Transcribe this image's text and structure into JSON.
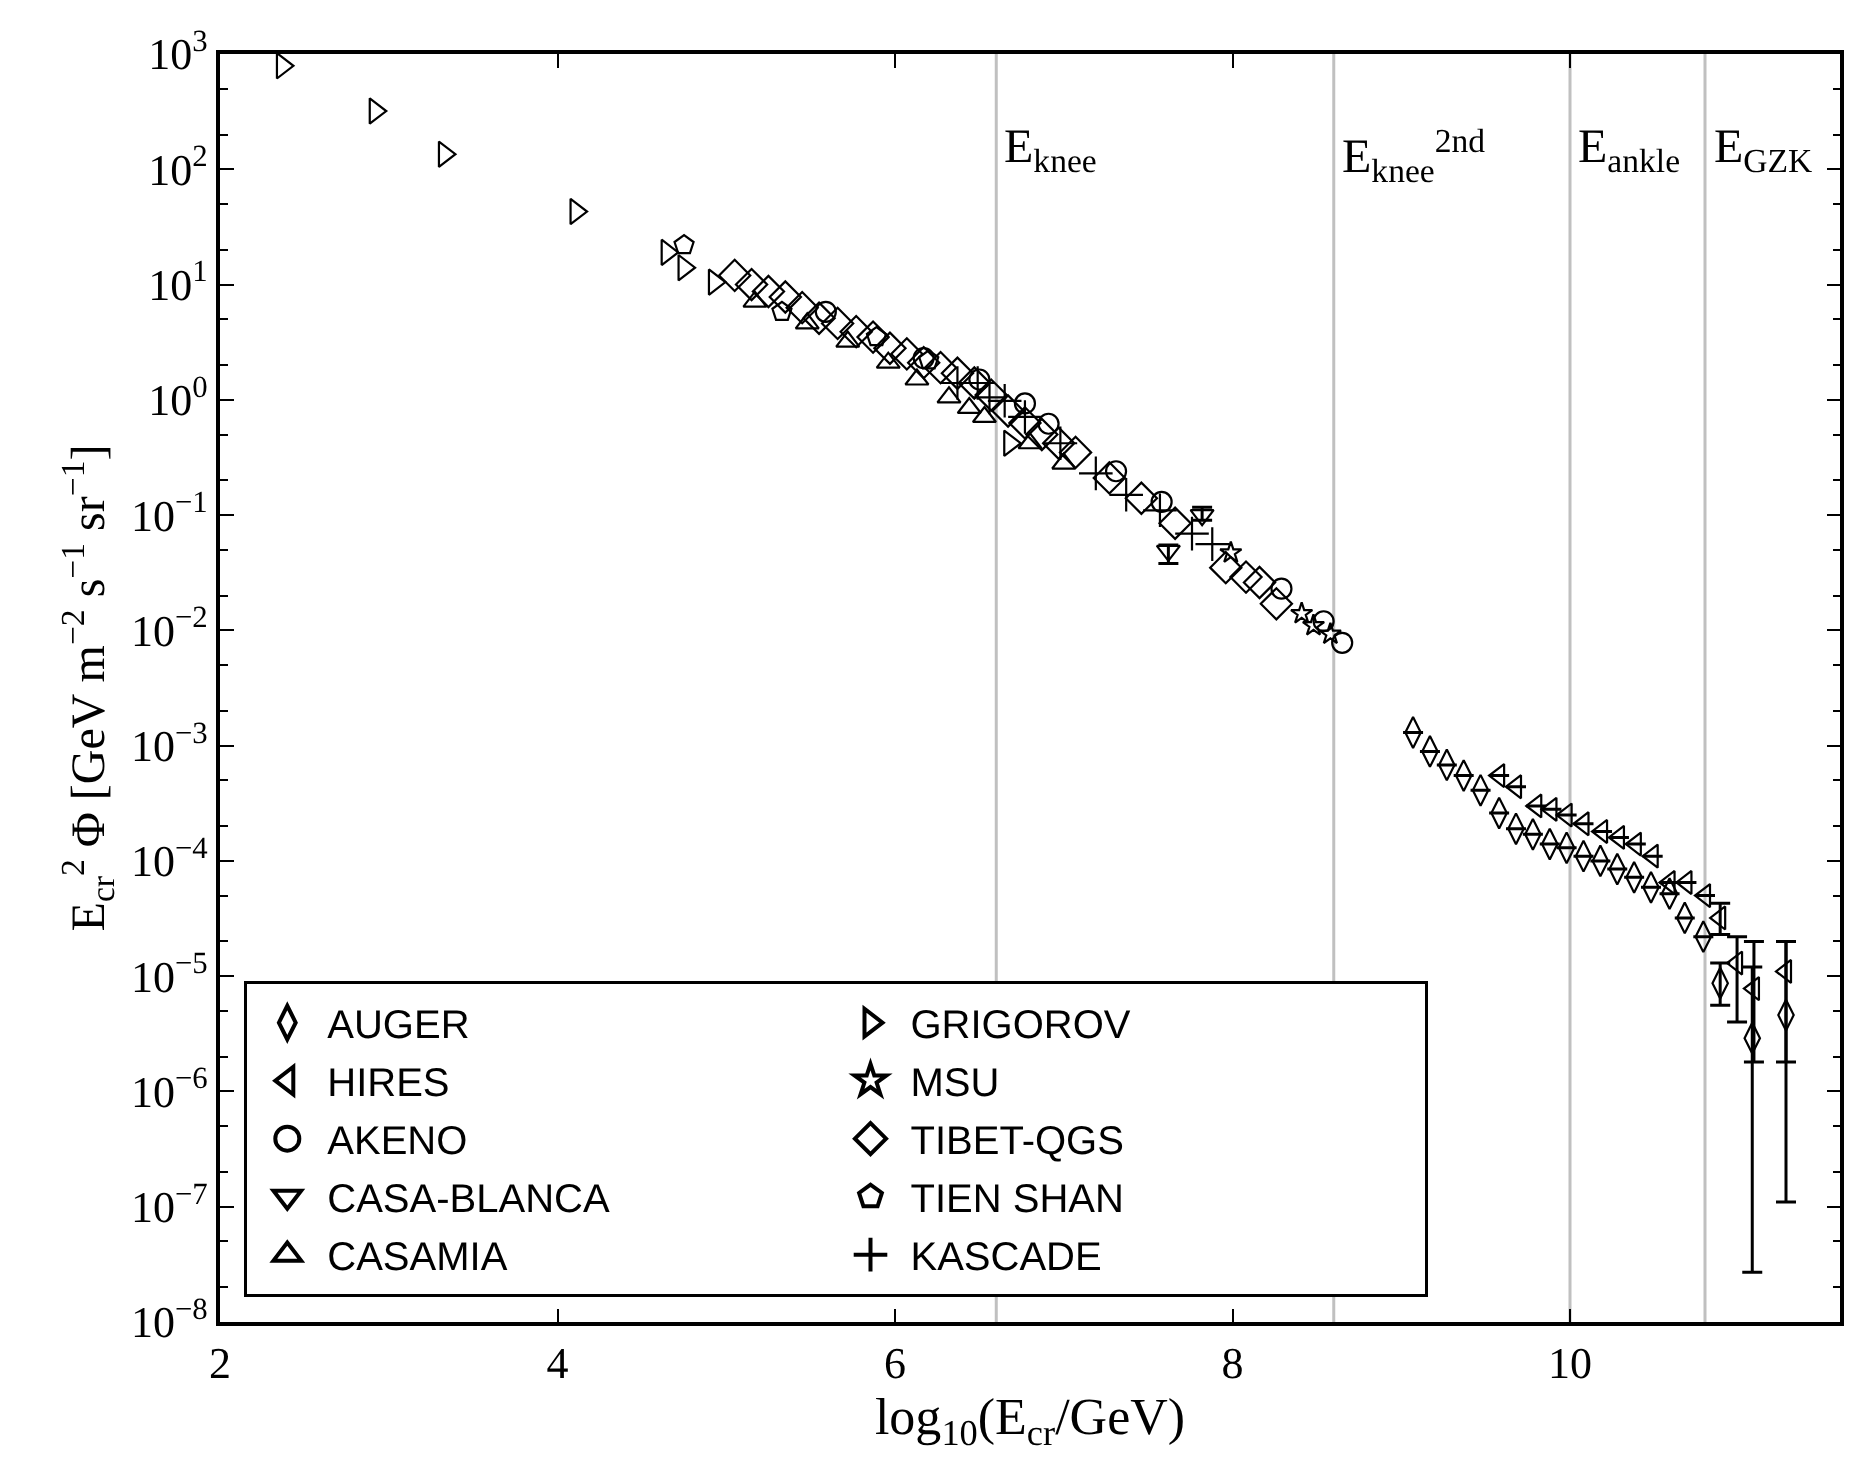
{
  "chart_data": {
    "type": "scatter",
    "xlabel": "log$_{10}$(E$_{cr}$/GeV)",
    "ylabel": "E$_{cr}$$^{2}$ Φ [GeV m$^{−2}$ s$^{−1}$ sr$^{−1}$]",
    "log": "y",
    "grid": false,
    "legend": "bottom left",
    "xlim": [
      2,
      11.6
    ],
    "xticks": [
      2,
      4,
      6,
      8,
      10
    ],
    "ylim": [
      1e-08,
      1000
    ],
    "yticks": [
      {
        "value": 1e-08,
        "label": "10$^{−8}$"
      },
      {
        "value": 1e-07,
        "label": "10$^{−7}$"
      },
      {
        "value": 1e-06,
        "label": "10$^{−6}$"
      },
      {
        "value": 1e-05,
        "label": "10$^{−5}$"
      },
      {
        "value": 0.0001,
        "label": "10$^{−4}$"
      },
      {
        "value": 0.001,
        "label": "10$^{−3}$"
      },
      {
        "value": 0.01,
        "label": "10$^{−2}$"
      },
      {
        "value": 0.1,
        "label": "10$^{−1}$"
      },
      {
        "value": 1,
        "label": "10$^{0}$"
      },
      {
        "value": 10,
        "label": "10$^{1}$"
      },
      {
        "value": 100,
        "label": "10$^{2}$"
      },
      {
        "value": 1000,
        "label": "10$^{3}$"
      }
    ],
    "ref_lines": [
      {
        "axis": "x",
        "value": 6.6,
        "label": "E$_{knee}$",
        "color": "#c0c0c0"
      },
      {
        "axis": "x",
        "value": 8.6,
        "label": "E$_{knee}$$^{2nd}$",
        "color": "#c0c0c0"
      },
      {
        "axis": "x",
        "value": 10.0,
        "label": "E$_{ankle}$",
        "color": "#c0c0c0"
      },
      {
        "axis": "x",
        "value": 10.8,
        "label": "E$_{GZK}$",
        "color": "#c0c0c0"
      }
    ],
    "series": [
      {
        "name": "AUGER",
        "color": "#000000",
        "marker": "diamond-tall",
        "x": [
          9.07,
          9.17,
          9.27,
          9.37,
          9.47,
          9.58,
          9.68,
          9.78,
          9.88,
          9.98,
          10.08,
          10.18,
          10.28,
          10.38,
          10.48,
          10.59,
          10.68,
          10.79,
          10.89,
          11.08,
          11.28
        ],
        "values": [
          0.0013,
          0.00089,
          0.00068,
          0.00055,
          0.00041,
          0.00026,
          0.00019,
          0.00017,
          0.00014,
          0.00013,
          0.00011,
          0.0001,
          8.5e-05,
          7.2e-05,
          5.9e-05,
          5.2e-05,
          3.2e-05,
          2.2e-05,
          8.7e-06,
          2.9e-06,
          4.6e-06
        ],
        "errors": [
          null,
          null,
          null,
          null,
          null,
          null,
          null,
          null,
          null,
          null,
          null,
          null,
          null,
          null,
          null,
          null,
          null,
          null,
          [
            5.6e-06,
            1.3e-05
          ],
          [
            2.7e-08,
            1.2e-05
          ],
          [
            1.1e-07,
            2e-05
          ]
        ]
      },
      {
        "name": "HIRES",
        "color": "#000000",
        "marker": "triangle-left",
        "x": [
          9.58,
          9.68,
          9.8,
          9.89,
          9.98,
          10.08,
          10.19,
          10.29,
          10.39,
          10.49,
          10.59,
          10.69,
          10.8,
          10.89,
          10.99,
          11.09,
          11.28
        ],
        "values": [
          0.00055,
          0.00044,
          0.0003,
          0.00028,
          0.00025,
          0.00021,
          0.00018,
          0.00016,
          0.00014,
          0.00011,
          6.5e-05,
          6.5e-05,
          5e-05,
          3.2e-05,
          1.3e-05,
          7.8e-06,
          1.1e-05
        ],
        "errors": [
          null,
          null,
          null,
          null,
          null,
          null,
          null,
          null,
          null,
          null,
          null,
          null,
          null,
          [
            2.3e-05,
            4.3e-05
          ],
          [
            4e-06,
            2.2e-05
          ],
          [
            1.8e-06,
            2e-05
          ],
          [
            1.8e-06,
            2e-05
          ]
        ]
      },
      {
        "name": "AKENO",
        "color": "#000000",
        "marker": "circle",
        "x": [
          5.59,
          6.17,
          6.5,
          6.77,
          6.91,
          7.31,
          7.58,
          8.29,
          8.54,
          8.65
        ],
        "values": [
          5.8,
          2.3,
          1.5,
          0.93,
          0.62,
          0.24,
          0.13,
          0.023,
          0.012,
          0.0078
        ]
      },
      {
        "name": "CASA-BLANCA",
        "color": "#000000",
        "marker": "triangle-down",
        "x": [
          7.62,
          7.82
        ],
        "values": [
          0.049,
          0.1
        ],
        "errors": [
          [
            0.038,
            0.055
          ],
          [
            0.09,
            0.117
          ]
        ]
      },
      {
        "name": "CASAMIA",
        "color": "#000000",
        "marker": "triangle-up",
        "x": [
          5.17,
          5.48,
          5.72,
          5.96,
          6.13,
          6.32,
          6.44,
          6.53,
          6.8,
          7.0
        ],
        "values": [
          7.1,
          4.6,
          3.2,
          2.1,
          1.5,
          1.05,
          0.85,
          0.71,
          0.42,
          0.28
        ]
      },
      {
        "name": "GRIGOROV",
        "color": "#000000",
        "marker": "triangle-right",
        "x": [
          2.37,
          2.92,
          3.33,
          4.11,
          4.65,
          4.75,
          4.93,
          6.68
        ],
        "values": [
          790,
          320,
          135,
          43,
          19,
          14,
          10.5,
          0.42
        ]
      },
      {
        "name": "MSU",
        "color": "#000000",
        "marker": "star",
        "x": [
          7.99,
          8.41,
          8.48,
          8.58
        ],
        "values": [
          0.047,
          0.014,
          0.011,
          0.0093
        ]
      },
      {
        "name": "TIBET-QGS",
        "color": "#000000",
        "marker": "diamond",
        "x": [
          5.05,
          5.15,
          5.25,
          5.35,
          5.45,
          5.55,
          5.66,
          5.77,
          5.87,
          5.97,
          6.07,
          6.17,
          6.27,
          6.37,
          6.47,
          6.57,
          6.67,
          6.77,
          6.87,
          6.97,
          7.07,
          7.27,
          7.46,
          7.66,
          7.96,
          8.08,
          8.16,
          8.26
        ],
        "values": [
          12,
          10,
          8.7,
          7.8,
          6.3,
          5.1,
          4.6,
          3.9,
          3.5,
          2.8,
          2.5,
          2.1,
          1.9,
          1.7,
          1.4,
          1.1,
          0.8,
          0.63,
          0.5,
          0.42,
          0.35,
          0.21,
          0.14,
          0.085,
          0.035,
          0.029,
          0.026,
          0.017
        ]
      },
      {
        "name": "TIEN SHAN",
        "color": "#000000",
        "x": [
          4.75,
          5.33,
          5.89,
          6.2
        ],
        "values": [
          22,
          5.8,
          3.5,
          2.2
        ]
      },
      {
        "name": "KASCADE",
        "color": "#000000",
        "marker": "cross",
        "x": [
          6.37,
          6.49,
          6.56,
          6.65,
          6.77,
          6.98,
          7.19,
          7.37,
          7.57,
          7.76,
          7.88
        ],
        "values": [
          1.4,
          1.4,
          1.05,
          0.98,
          0.71,
          0.42,
          0.23,
          0.15,
          0.11,
          0.069,
          0.056
        ]
      }
    ]
  }
}
